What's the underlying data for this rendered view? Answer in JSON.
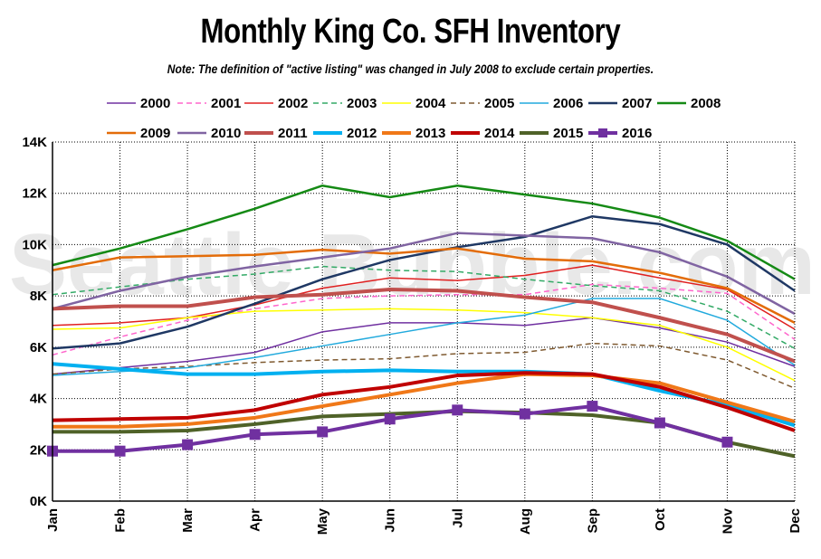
{
  "title": "Monthly King Co. SFH Inventory",
  "note": "Note: The definition of \"active listing\" was changed in July 2008 to exclude certain properties.",
  "watermark": "Seattle Bubble.com",
  "chart_data": {
    "type": "line",
    "categories": [
      "Jan",
      "Feb",
      "Mar",
      "Apr",
      "May",
      "Jun",
      "Jul",
      "Aug",
      "Sep",
      "Oct",
      "Nov",
      "Dec"
    ],
    "y_tick_labels": [
      "0K",
      "2K",
      "4K",
      "6K",
      "8K",
      "10K",
      "12K",
      "14K"
    ],
    "ylim": [
      0,
      14000
    ],
    "grid": true,
    "legend_position": "top",
    "series": [
      {
        "name": "2000",
        "color": "#7030a0",
        "style": "solid",
        "weight": "thin",
        "values": [
          4950,
          5200,
          5450,
          5800,
          6600,
          6950,
          6950,
          6850,
          7150,
          6750,
          6200,
          5250
        ]
      },
      {
        "name": "2001",
        "color": "#ff66cc",
        "style": "dashed",
        "weight": "thin",
        "values": [
          5700,
          6400,
          7050,
          7500,
          7900,
          8000,
          8050,
          8050,
          8450,
          8300,
          8100,
          6300
        ]
      },
      {
        "name": "2002",
        "color": "#e02020",
        "style": "solid",
        "weight": "thin",
        "values": [
          6850,
          6950,
          7150,
          7650,
          8300,
          8700,
          8600,
          8800,
          9200,
          8700,
          8250,
          6700
        ]
      },
      {
        "name": "2003",
        "color": "#33aa66",
        "style": "dashed",
        "weight": "thin",
        "values": [
          8050,
          8350,
          8650,
          8850,
          9150,
          9000,
          8950,
          8650,
          8400,
          8200,
          7400,
          5950
        ]
      },
      {
        "name": "2004",
        "color": "#ffff00",
        "style": "solid",
        "weight": "thin",
        "values": [
          6700,
          6750,
          7150,
          7400,
          7450,
          7500,
          7450,
          7350,
          7150,
          6850,
          6000,
          4700
        ]
      },
      {
        "name": "2005",
        "color": "#7f5a30",
        "style": "dashed",
        "weight": "thin",
        "values": [
          4950,
          5150,
          5250,
          5400,
          5500,
          5550,
          5750,
          5800,
          6150,
          6050,
          5500,
          4400
        ]
      },
      {
        "name": "2006",
        "color": "#22aadd",
        "style": "solid",
        "weight": "thin",
        "values": [
          4900,
          5050,
          5200,
          5600,
          6050,
          6500,
          6950,
          7250,
          7900,
          7900,
          7050,
          5300
        ]
      },
      {
        "name": "2007",
        "color": "#1f3864",
        "style": "solid",
        "weight": "medium",
        "values": [
          5950,
          6150,
          6800,
          7700,
          8650,
          9400,
          9900,
          10300,
          11100,
          10800,
          10000,
          8200
        ]
      },
      {
        "name": "2008",
        "color": "#158a15",
        "style": "solid",
        "weight": "medium",
        "values": [
          9200,
          9850,
          10600,
          11400,
          12300,
          11850,
          12300,
          11950,
          11600,
          11050,
          10150,
          8650
        ]
      },
      {
        "name": "2009",
        "color": "#e36c09",
        "style": "solid",
        "weight": "medium",
        "values": [
          9000,
          9500,
          9550,
          9600,
          9800,
          9650,
          9850,
          9450,
          9350,
          8900,
          8300,
          6950
        ]
      },
      {
        "name": "2010",
        "color": "#8064a2",
        "style": "solid",
        "weight": "medium",
        "values": [
          7500,
          8200,
          8750,
          9150,
          9500,
          9850,
          10450,
          10350,
          10250,
          9700,
          8750,
          7300
        ]
      },
      {
        "name": "2011",
        "color": "#c0504d",
        "style": "solid",
        "weight": "thick",
        "values": [
          7500,
          7600,
          7600,
          7950,
          8050,
          8250,
          8200,
          7950,
          7750,
          7150,
          6500,
          5450
        ]
      },
      {
        "name": "2012",
        "color": "#00b0f0",
        "style": "solid",
        "weight": "thick",
        "values": [
          5350,
          5150,
          4950,
          4950,
          5050,
          5100,
          5050,
          5050,
          4950,
          4300,
          3750,
          2950
        ]
      },
      {
        "name": "2013",
        "color": "#f07818",
        "style": "solid",
        "weight": "thick",
        "values": [
          2900,
          2900,
          3000,
          3250,
          3700,
          4150,
          4600,
          4950,
          4900,
          4600,
          3850,
          3100
        ]
      },
      {
        "name": "2014",
        "color": "#c00000",
        "style": "solid",
        "weight": "thick",
        "values": [
          3150,
          3200,
          3250,
          3550,
          4150,
          4450,
          4900,
          5000,
          4950,
          4450,
          3650,
          2750
        ]
      },
      {
        "name": "2015",
        "color": "#4f6228",
        "style": "solid",
        "weight": "thick",
        "values": [
          2700,
          2700,
          2750,
          3000,
          3300,
          3400,
          3500,
          3450,
          3350,
          3050,
          2300,
          1750
        ]
      },
      {
        "name": "2016",
        "color": "#7030a0",
        "style": "markers",
        "weight": "thick",
        "values": [
          1950,
          1950,
          2200,
          2600,
          2700,
          3200,
          3550,
          3400,
          3700,
          3050,
          2300,
          null
        ]
      }
    ]
  }
}
